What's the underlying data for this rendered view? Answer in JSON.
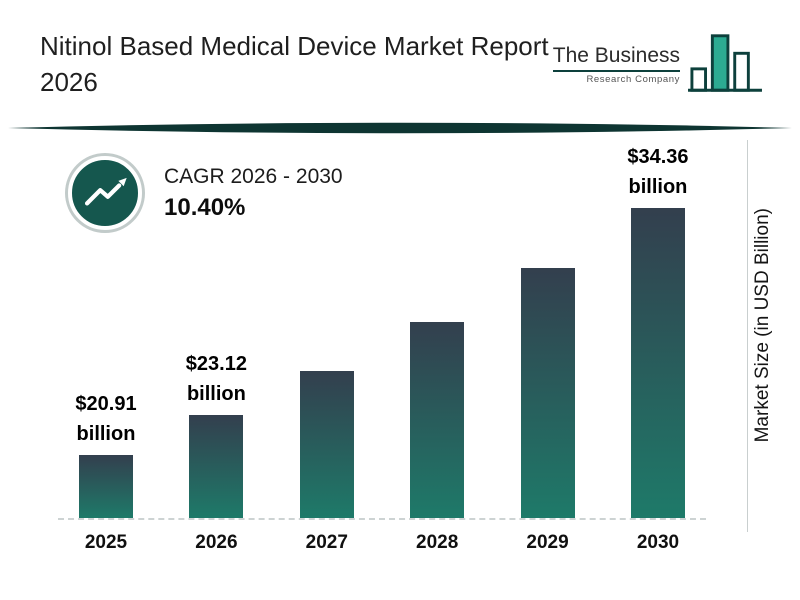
{
  "header": {
    "title": "Nitinol Based Medical Device Market Report 2026",
    "logo": {
      "name": "The Business",
      "subname": "Research Company",
      "icon": "bar-chart-logo-icon",
      "accent_color": "#0d403c",
      "fill_color": "#2cab92"
    }
  },
  "cagr": {
    "label": "CAGR 2026 - 2030",
    "value": "10.40%",
    "icon": "trend-up-icon",
    "circle_color": "#15574e"
  },
  "chart_data": {
    "type": "bar",
    "title": "Nitinol Based Medical Device Market Report 2026",
    "categories": [
      "2025",
      "2026",
      "2027",
      "2028",
      "2029",
      "2030"
    ],
    "values": [
      20.91,
      23.12,
      25.52,
      28.18,
      31.11,
      34.36
    ],
    "value_labels": [
      "$20.91 billion",
      "$23.12 billion",
      "",
      "",
      "",
      "$34.36 billion"
    ],
    "ylabel": "Market Size (in USD Billion)",
    "ylim": [
      17.5,
      36
    ],
    "unit": "USD billion",
    "grid": "off",
    "baseline_style": "dashed",
    "bar_colors": {
      "top": "#333f4e",
      "bottom": "#1e7a69"
    }
  }
}
